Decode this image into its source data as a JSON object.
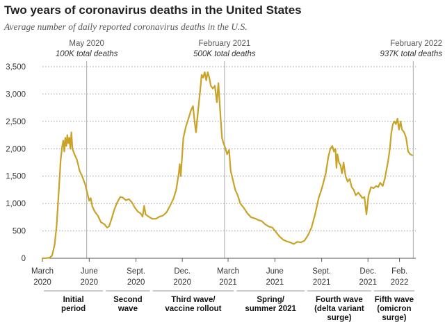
{
  "header": {
    "title": "Two years of coronavirus deaths in the United States",
    "subtitle": "Average number of daily reported coronavirus deaths in the U.S."
  },
  "colors": {
    "line": "#c9a227",
    "grid": "#9a9a9a",
    "marker": "#aaaaaa",
    "text": "#333333"
  },
  "chart_data": {
    "type": "line",
    "title": "Two years of coronavirus deaths in the United States",
    "subtitle": "Average number of daily reported coronavirus deaths in the U.S.",
    "xlabel": "",
    "ylabel": "",
    "ylim": [
      0,
      3500
    ],
    "yticks": [
      0,
      500,
      1000,
      1500,
      2000,
      2500,
      3000,
      3500
    ],
    "ytick_labels": [
      "0",
      "500",
      "1,000",
      "1,500",
      "2,000",
      "2,500",
      "3,000",
      "3,500"
    ],
    "grid": true,
    "x_domain": [
      "2020-03-01",
      "2022-03-05"
    ],
    "xticks": [
      {
        "date": "2020-03-01",
        "line1": "March",
        "line2": "2020"
      },
      {
        "date": "2020-06-01",
        "line1": "June",
        "line2": "2020"
      },
      {
        "date": "2020-09-01",
        "line1": "Sept.",
        "line2": "2020"
      },
      {
        "date": "2020-12-01",
        "line1": "Dec.",
        "line2": "2020"
      },
      {
        "date": "2021-03-01",
        "line1": "March",
        "line2": "2021"
      },
      {
        "date": "2021-06-01",
        "line1": "June",
        "line2": "2021"
      },
      {
        "date": "2021-09-01",
        "line1": "Sept.",
        "line2": "2021"
      },
      {
        "date": "2021-12-01",
        "line1": "Dec.",
        "line2": "2021"
      },
      {
        "date": "2022-02-01",
        "line1": "Feb.",
        "line2": "2022"
      }
    ],
    "markers": [
      {
        "date": "2020-05-27",
        "line1": "May 2020",
        "line2": "100K total deaths"
      },
      {
        "date": "2021-02-22",
        "line1": "February 2021",
        "line2": "500K total deaths"
      },
      {
        "date": "2022-02-28",
        "line1": "February 2022",
        "line2": "937K total deaths"
      }
    ],
    "waves": [
      {
        "label": [
          "Initial",
          "period"
        ],
        "start": "2020-03-01",
        "end": "2020-07-01"
      },
      {
        "label": [
          "Second",
          "wave"
        ],
        "start": "2020-07-01",
        "end": "2020-10-01"
      },
      {
        "label": [
          "Third wave/",
          "vaccine rollout"
        ],
        "start": "2020-10-01",
        "end": "2021-03-15"
      },
      {
        "label": [
          "Spring/",
          "summer 2021"
        ],
        "start": "2021-03-15",
        "end": "2021-08-01"
      },
      {
        "label": [
          "Fourth wave",
          "(delta variant",
          "surge)"
        ],
        "start": "2021-08-01",
        "end": "2021-12-10"
      },
      {
        "label": [
          "Fifth wave",
          "(omicron",
          "surge)"
        ],
        "start": "2021-12-10",
        "end": "2022-03-05"
      }
    ],
    "series": [
      {
        "name": "",
        "points": [
          [
            "2020-03-01",
            0
          ],
          [
            "2020-03-08",
            3
          ],
          [
            "2020-03-15",
            10
          ],
          [
            "2020-03-20",
            50
          ],
          [
            "2020-03-25",
            250
          ],
          [
            "2020-03-29",
            600
          ],
          [
            "2020-04-02",
            1200
          ],
          [
            "2020-04-06",
            1800
          ],
          [
            "2020-04-09",
            2050
          ],
          [
            "2020-04-11",
            2150
          ],
          [
            "2020-04-13",
            1950
          ],
          [
            "2020-04-15",
            2200
          ],
          [
            "2020-04-17",
            2050
          ],
          [
            "2020-04-19",
            2250
          ],
          [
            "2020-04-21",
            2100
          ],
          [
            "2020-04-23",
            2200
          ],
          [
            "2020-04-25",
            2000
          ],
          [
            "2020-04-27",
            2300
          ],
          [
            "2020-04-29",
            2000
          ],
          [
            "2020-05-03",
            1900
          ],
          [
            "2020-05-08",
            1800
          ],
          [
            "2020-05-13",
            1600
          ],
          [
            "2020-05-18",
            1500
          ],
          [
            "2020-05-24",
            1350
          ],
          [
            "2020-05-28",
            1200
          ],
          [
            "2020-06-01",
            1050
          ],
          [
            "2020-06-04",
            1100
          ],
          [
            "2020-06-07",
            950
          ],
          [
            "2020-06-12",
            850
          ],
          [
            "2020-06-18",
            780
          ],
          [
            "2020-06-24",
            660
          ],
          [
            "2020-07-01",
            620
          ],
          [
            "2020-07-06",
            560
          ],
          [
            "2020-07-10",
            580
          ],
          [
            "2020-07-15",
            720
          ],
          [
            "2020-07-20",
            880
          ],
          [
            "2020-07-25",
            1000
          ],
          [
            "2020-08-01",
            1120
          ],
          [
            "2020-08-06",
            1110
          ],
          [
            "2020-08-12",
            1060
          ],
          [
            "2020-08-18",
            1080
          ],
          [
            "2020-08-24",
            1020
          ],
          [
            "2020-08-30",
            920
          ],
          [
            "2020-09-05",
            850
          ],
          [
            "2020-09-10",
            820
          ],
          [
            "2020-09-14",
            760
          ],
          [
            "2020-09-17",
            960
          ],
          [
            "2020-09-20",
            800
          ],
          [
            "2020-09-26",
            760
          ],
          [
            "2020-10-03",
            720
          ],
          [
            "2020-10-10",
            720
          ],
          [
            "2020-10-17",
            760
          ],
          [
            "2020-10-24",
            780
          ],
          [
            "2020-10-31",
            840
          ],
          [
            "2020-11-07",
            960
          ],
          [
            "2020-11-14",
            1100
          ],
          [
            "2020-11-19",
            1250
          ],
          [
            "2020-11-24",
            1550
          ],
          [
            "2020-11-26",
            1720
          ],
          [
            "2020-11-28",
            1500
          ],
          [
            "2020-12-03",
            2200
          ],
          [
            "2020-12-08",
            2400
          ],
          [
            "2020-12-13",
            2550
          ],
          [
            "2020-12-18",
            2700
          ],
          [
            "2020-12-22",
            2780
          ],
          [
            "2020-12-25",
            2500
          ],
          [
            "2020-12-28",
            2300
          ],
          [
            "2021-01-01",
            2700
          ],
          [
            "2021-01-05",
            3050
          ],
          [
            "2021-01-08",
            3350
          ],
          [
            "2021-01-11",
            3300
          ],
          [
            "2021-01-14",
            3400
          ],
          [
            "2021-01-17",
            3250
          ],
          [
            "2021-01-20",
            3400
          ],
          [
            "2021-01-23",
            3300
          ],
          [
            "2021-01-26",
            3150
          ],
          [
            "2021-01-30",
            3100
          ],
          [
            "2021-02-03",
            3150
          ],
          [
            "2021-02-07",
            2850
          ],
          [
            "2021-02-10",
            3200
          ],
          [
            "2021-02-14",
            2600
          ],
          [
            "2021-02-17",
            2200
          ],
          [
            "2021-02-20",
            2100
          ],
          [
            "2021-02-24",
            2000
          ],
          [
            "2021-02-27",
            1900
          ],
          [
            "2021-03-03",
            1980
          ],
          [
            "2021-03-06",
            1600
          ],
          [
            "2021-03-10",
            1450
          ],
          [
            "2021-03-15",
            1250
          ],
          [
            "2021-03-20",
            1150
          ],
          [
            "2021-03-25",
            1000
          ],
          [
            "2021-04-01",
            920
          ],
          [
            "2021-04-08",
            820
          ],
          [
            "2021-04-15",
            750
          ],
          [
            "2021-04-22",
            730
          ],
          [
            "2021-04-29",
            700
          ],
          [
            "2021-05-06",
            680
          ],
          [
            "2021-05-13",
            620
          ],
          [
            "2021-05-20",
            580
          ],
          [
            "2021-05-27",
            560
          ],
          [
            "2021-06-03",
            480
          ],
          [
            "2021-06-10",
            400
          ],
          [
            "2021-06-17",
            340
          ],
          [
            "2021-06-24",
            310
          ],
          [
            "2021-07-01",
            290
          ],
          [
            "2021-07-08",
            260
          ],
          [
            "2021-07-15",
            300
          ],
          [
            "2021-07-22",
            290
          ],
          [
            "2021-07-29",
            320
          ],
          [
            "2021-08-05",
            420
          ],
          [
            "2021-08-12",
            560
          ],
          [
            "2021-08-19",
            800
          ],
          [
            "2021-08-26",
            1100
          ],
          [
            "2021-09-02",
            1300
          ],
          [
            "2021-09-09",
            1550
          ],
          [
            "2021-09-14",
            1850
          ],
          [
            "2021-09-18",
            2000
          ],
          [
            "2021-09-22",
            2050
          ],
          [
            "2021-09-25",
            1950
          ],
          [
            "2021-09-28",
            2000
          ],
          [
            "2021-09-30",
            1650
          ],
          [
            "2021-10-02",
            1900
          ],
          [
            "2021-10-05",
            1750
          ],
          [
            "2021-10-08",
            1700
          ],
          [
            "2021-10-11",
            1550
          ],
          [
            "2021-10-14",
            1750
          ],
          [
            "2021-10-18",
            1500
          ],
          [
            "2021-10-22",
            1400
          ],
          [
            "2021-10-26",
            1450
          ],
          [
            "2021-10-30",
            1300
          ],
          [
            "2021-11-03",
            1250
          ],
          [
            "2021-11-07",
            1150
          ],
          [
            "2021-11-12",
            1200
          ],
          [
            "2021-11-16",
            1150
          ],
          [
            "2021-11-20",
            1100
          ],
          [
            "2021-11-24",
            1120
          ],
          [
            "2021-11-28",
            800
          ],
          [
            "2021-12-02",
            1150
          ],
          [
            "2021-12-07",
            1300
          ],
          [
            "2021-12-12",
            1280
          ],
          [
            "2021-12-17",
            1320
          ],
          [
            "2021-12-21",
            1300
          ],
          [
            "2021-12-25",
            1380
          ],
          [
            "2021-12-30",
            1320
          ],
          [
            "2022-01-03",
            1450
          ],
          [
            "2022-01-07",
            1650
          ],
          [
            "2022-01-10",
            1800
          ],
          [
            "2022-01-13",
            2000
          ],
          [
            "2022-01-16",
            2300
          ],
          [
            "2022-01-19",
            2450
          ],
          [
            "2022-01-22",
            2500
          ],
          [
            "2022-01-25",
            2450
          ],
          [
            "2022-01-28",
            2550
          ],
          [
            "2022-01-31",
            2350
          ],
          [
            "2022-02-03",
            2500
          ],
          [
            "2022-02-06",
            2350
          ],
          [
            "2022-02-10",
            2300
          ],
          [
            "2022-02-14",
            2200
          ],
          [
            "2022-02-18",
            1950
          ],
          [
            "2022-02-22",
            1900
          ],
          [
            "2022-02-26",
            1880
          ]
        ]
      }
    ]
  }
}
